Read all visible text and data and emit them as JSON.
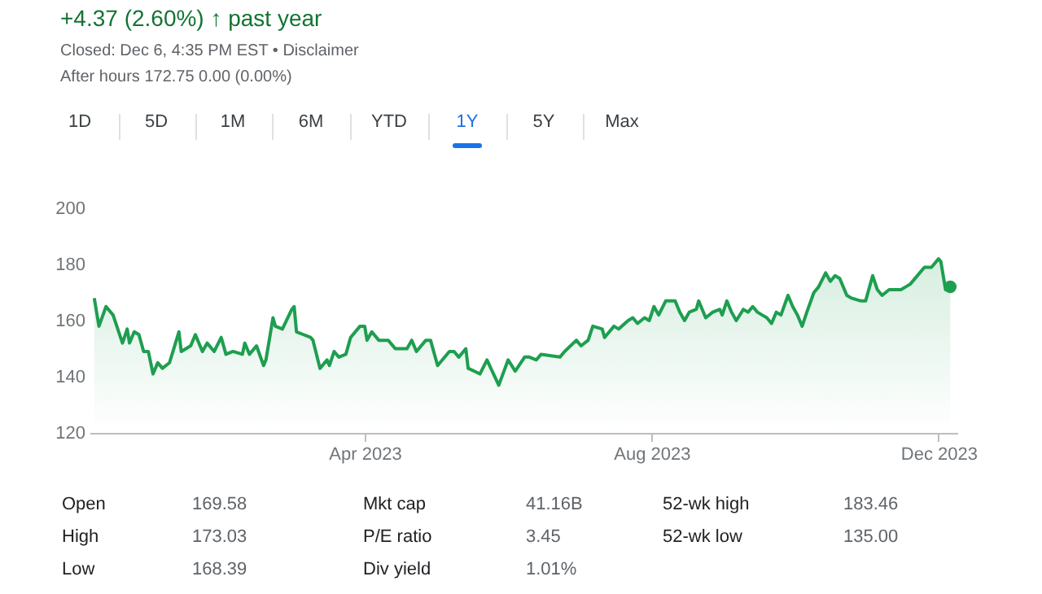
{
  "chart_data": {
    "type": "area",
    "title": "+4.37 (2.60%) ↑ past year",
    "subtitle": "Closed: Dec 6, 4:35 PM EST • Disclaimer",
    "annotations": [
      "After hours 172.75 0.00 (0.00%)",
      "1D",
      "5D",
      "1M",
      "6M",
      "YTD",
      "1Y",
      "5Y",
      "Max",
      "Open",
      "169.58",
      "High",
      "173.03",
      "Low",
      "168.39",
      "Mkt cap",
      "41.16B",
      "P/E ratio",
      "3.45",
      "Div yield",
      "1.01%",
      "52-wk high",
      "183.46",
      "52-wk low",
      "135.00"
    ],
    "xlim": [
      "2022-12-05",
      "2023-12-09"
    ],
    "xticks": [
      {
        "value": "2023-04-01",
        "label": "Apr 2023"
      },
      {
        "value": "2023-08-01",
        "label": "Aug 2023"
      },
      {
        "value": "2023-12-01",
        "label": "Dec 2023"
      }
    ],
    "ylim": [
      120,
      200
    ],
    "yticks": [
      120,
      140,
      160,
      180,
      200
    ],
    "series": [
      {
        "color": "#1e9e50",
        "x": [
          "2022-12-07",
          "2022-12-09",
          "2022-12-12",
          "2022-12-15",
          "2022-12-19",
          "2022-12-21",
          "2022-12-22",
          "2022-12-24",
          "2022-12-26",
          "2022-12-28",
          "2022-12-30",
          "2023-01-01",
          "2023-01-03",
          "2023-01-05",
          "2023-01-08",
          "2023-01-12",
          "2023-01-13",
          "2023-01-17",
          "2023-01-19",
          "2023-01-22",
          "2023-01-24",
          "2023-01-27",
          "2023-01-30",
          "2023-02-01",
          "2023-02-04",
          "2023-02-08",
          "2023-02-09",
          "2023-02-11",
          "2023-02-14",
          "2023-02-17",
          "2023-02-18",
          "2023-02-21",
          "2023-02-22",
          "2023-02-25",
          "2023-03-01",
          "2023-03-02",
          "2023-03-03",
          "2023-03-06",
          "2023-03-09",
          "2023-03-10",
          "2023-03-13",
          "2023-03-16",
          "2023-03-17",
          "2023-03-19",
          "2023-03-21",
          "2023-03-24",
          "2023-03-26",
          "2023-03-30",
          "2023-04-01",
          "2023-04-02",
          "2023-04-04",
          "2023-04-07",
          "2023-04-11",
          "2023-04-14",
          "2023-04-19",
          "2023-04-21",
          "2023-04-23",
          "2023-04-27",
          "2023-04-29",
          "2023-05-02",
          "2023-05-07",
          "2023-05-09",
          "2023-05-11",
          "2023-05-14",
          "2023-05-15",
          "2023-05-20",
          "2023-05-23",
          "2023-05-28",
          "2023-06-01",
          "2023-06-04",
          "2023-06-08",
          "2023-06-10",
          "2023-06-13",
          "2023-06-15",
          "2023-06-23",
          "2023-06-25",
          "2023-06-30",
          "2023-07-02",
          "2023-07-05",
          "2023-07-07",
          "2023-07-11",
          "2023-07-12",
          "2023-07-16",
          "2023-07-18",
          "2023-07-22",
          "2023-07-24",
          "2023-07-26",
          "2023-07-29",
          "2023-07-31",
          "2023-08-02",
          "2023-08-04",
          "2023-08-07",
          "2023-08-11",
          "2023-08-13",
          "2023-08-15",
          "2023-08-17",
          "2023-08-20",
          "2023-08-21",
          "2023-08-24",
          "2023-08-27",
          "2023-08-30",
          "2023-08-31",
          "2023-09-02",
          "2023-09-04",
          "2023-09-06",
          "2023-09-09",
          "2023-09-11",
          "2023-09-13",
          "2023-09-15",
          "2023-09-17",
          "2023-09-19",
          "2023-09-21",
          "2023-09-23",
          "2023-09-25",
          "2023-09-28",
          "2023-09-30",
          "2023-10-02",
          "2023-10-04",
          "2023-10-06",
          "2023-10-09",
          "2023-10-11",
          "2023-10-14",
          "2023-10-16",
          "2023-10-18",
          "2023-10-20",
          "2023-10-23",
          "2023-10-25",
          "2023-10-29",
          "2023-10-31",
          "2023-11-03",
          "2023-11-05",
          "2023-11-07",
          "2023-11-10",
          "2023-11-12",
          "2023-11-15",
          "2023-11-17",
          "2023-11-19",
          "2023-11-23",
          "2023-11-25",
          "2023-11-28",
          "2023-12-01",
          "2023-12-02",
          "2023-12-04",
          "2023-12-06"
        ],
        "values": [
          168,
          158,
          165,
          162,
          152,
          157,
          152,
          156,
          155,
          149,
          149,
          141,
          145,
          143,
          145,
          156,
          149,
          151,
          155,
          149,
          152,
          149,
          154,
          148,
          149,
          148,
          152,
          148,
          151,
          144,
          146,
          161,
          158,
          157,
          164,
          165,
          156,
          155,
          154,
          153,
          143,
          146,
          144,
          149,
          147,
          148,
          154,
          158,
          158,
          153,
          156,
          153,
          153,
          150,
          150,
          153,
          149,
          153,
          153,
          144,
          149,
          149,
          147,
          150,
          143,
          141,
          146,
          137,
          146,
          142,
          147,
          147,
          146,
          148,
          147,
          149,
          153,
          151,
          153,
          158,
          157,
          154,
          158,
          157,
          160,
          161,
          159,
          161,
          160,
          165,
          162,
          167,
          167,
          163,
          160,
          163,
          164,
          167,
          161,
          163,
          164,
          162,
          167,
          163,
          160,
          164,
          163,
          165,
          163,
          162,
          161,
          159,
          163,
          162,
          169,
          165,
          162,
          158,
          163,
          170,
          172,
          177,
          174,
          176,
          175,
          169,
          168,
          167,
          167,
          176,
          171,
          169,
          171,
          171,
          171,
          172,
          173,
          177,
          179,
          179,
          182,
          181,
          171,
          172
        ]
      },
      {
        "type": "scatter",
        "color": "#1e9e50",
        "x": [
          "2023-12-06"
        ],
        "values": [
          172
        ]
      }
    ]
  }
}
